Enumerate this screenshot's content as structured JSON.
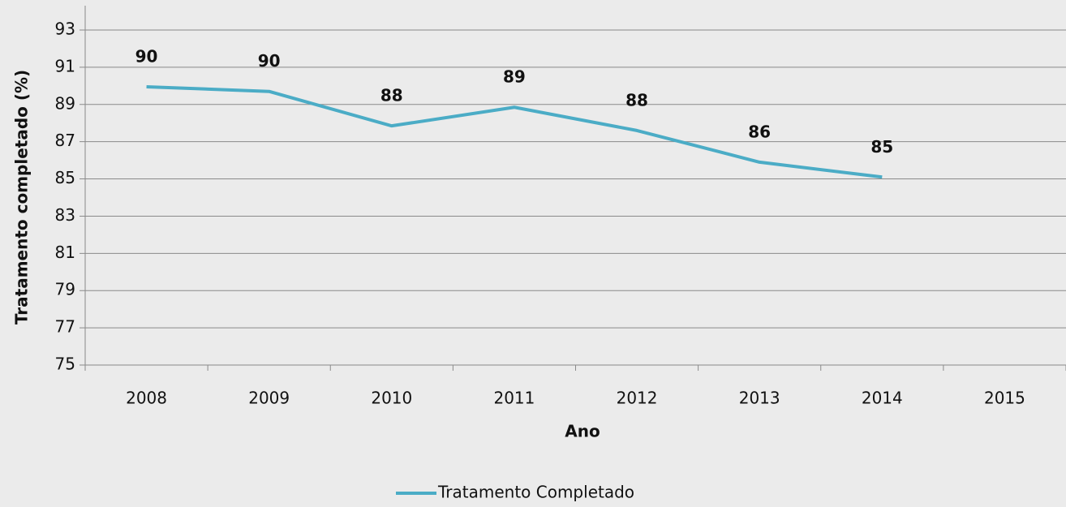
{
  "chart_data": {
    "type": "line",
    "x_label": "Ano",
    "y_label": "Tratamento completado (%)",
    "categories": [
      "2008",
      "2009",
      "2010",
      "2011",
      "2012",
      "2013",
      "2014",
      "2015"
    ],
    "series": [
      {
        "name": "Tratamento Completado",
        "color": "#4bacc6",
        "values": [
          89.95,
          89.7,
          87.85,
          88.85,
          87.6,
          85.9,
          85.1,
          null
        ],
        "value_labels": [
          "90",
          "90",
          "88",
          "89",
          "88",
          "86",
          "85",
          null
        ]
      }
    ],
    "ylim": [
      75,
      93
    ],
    "yticks": [
      75,
      77,
      79,
      81,
      83,
      85,
      87,
      89,
      91,
      93
    ],
    "grid": true,
    "legend": "bottom"
  }
}
